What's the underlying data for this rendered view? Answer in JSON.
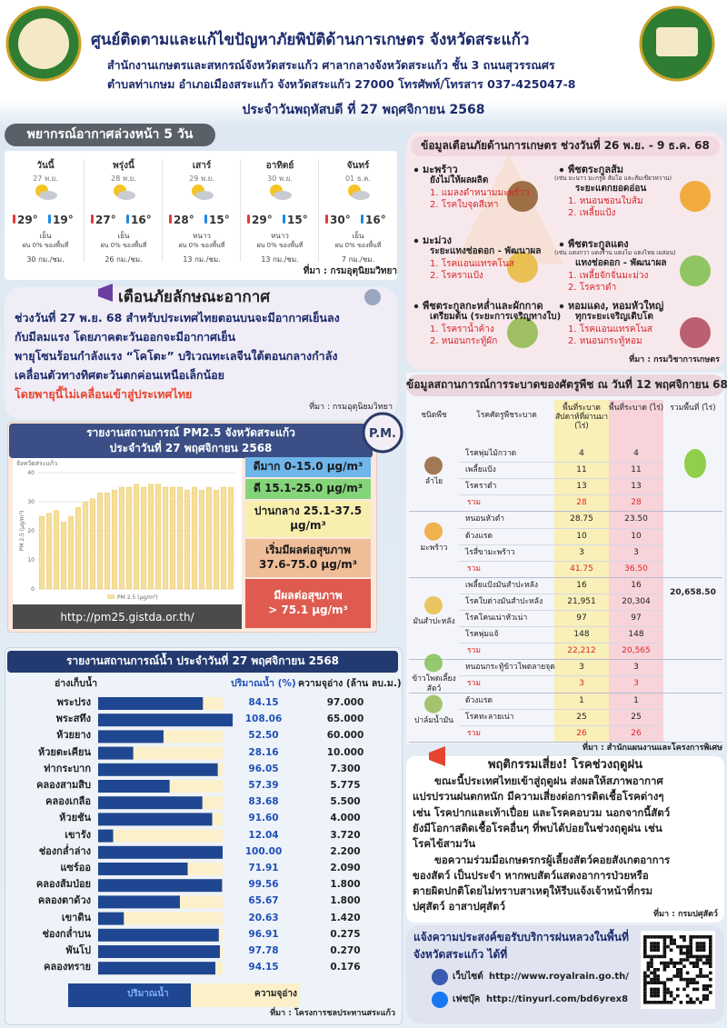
{
  "header": {
    "title": "ศูนย์ติดตามและแก้ไขปัญหาภัยพิบัติด้านการเกษตร จังหวัดสระแก้ว",
    "lines": [
      "สำนักงานเกษตรและสหกรณ์จังหวัดสระแก้ว ศาลากลางจังหวัดสระแก้ว ชั้น 3 ถนนสุวรรณศร",
      "ตำบลท่าเกษม อำเภอเมืองสระแก้ว จังหวัดสระแก้ว 27000 โทรศัพท์/โทรสาร 037-425047-8"
    ],
    "date": "ประจำวันพฤหัสบดี ที่ 27 พฤศจิกายน 2568"
  },
  "weather": {
    "title": "พยากรณ์อากาศล่วงหน้า 5 วัน",
    "days": [
      {
        "day": "วันนี้",
        "date": "27 พ.ย.",
        "max": "29°",
        "min": "19°",
        "condition": "เย็น",
        "rain": "ฝน 0% ของพื้นที่",
        "wind": "30 กม./ชม."
      },
      {
        "day": "พรุ่งนี้",
        "date": "28 พ.ย.",
        "max": "27°",
        "min": "16°",
        "condition": "เย็น",
        "rain": "ฝน 0% ของพื้นที่",
        "wind": "26 กม./ชม."
      },
      {
        "day": "เสาร์",
        "date": "29 พ.ย.",
        "max": "28°",
        "min": "15°",
        "condition": "หนาว",
        "rain": "ฝน 0% ของพื้นที่",
        "wind": "13 กม./ชม."
      },
      {
        "day": "อาทิตย์",
        "date": "30 พ.ย.",
        "max": "29°",
        "min": "15°",
        "condition": "หนาว",
        "rain": "ฝน 0% ของพื้นที่",
        "wind": "13 กม./ชม."
      },
      {
        "day": "จันทร์",
        "date": "01 ธ.ค.",
        "max": "30°",
        "min": "16°",
        "condition": "เย็น",
        "rain": "ฝน 0% ของพื้นที่",
        "wind": "7 กม./ชม."
      }
    ],
    "source": "ที่มา : กรมอุตุนิยมวิทยา"
  },
  "warning": {
    "title": "เตือนภัยลักษณะอากาศ",
    "lines": [
      "ช่วงวันที่ 27 พ.ย. 68 สำหรับประเทศไทยตอนบนจะมีอากาศเย็นลง",
      "กับมีลมแรง โดยภาคตะวันออกจะมีอากาศเย็น",
      "พายุโซนร้อนกำลังแรง “โคโตะ” บริเวณทะเลจีนใต้ตอนกลางกำลัง",
      "เคลื่อนตัวทางทิศตะวันตกค่อนเหนือเล็กน้อย"
    ],
    "highlight": "โดยพายุนี้ไม่เคลื่อนเข้าสู่ประเทศไทย",
    "source": "ที่มา : กรมอุตุนิยมวิทยา"
  },
  "pm25": {
    "title": [
      "รายงานสถานการณ์ PM2.5 จังหวัดสระแก้ว",
      "ประจำวันที่ 27 พฤศจิกายน 2568"
    ],
    "badge": "P.M.",
    "chart": {
      "type": "bar",
      "title": "จังหวัดสระแก้ว",
      "y_label": "PM 2.5 (µg/m³)",
      "legend": "PM 2.5 (µg/m³)",
      "color": "#f6df9a",
      "ylim": [
        0,
        40
      ],
      "yticks": [
        0,
        10,
        20,
        30,
        40
      ],
      "values": [
        25,
        26,
        27,
        23,
        25,
        28,
        30,
        31,
        33,
        33,
        34,
        35,
        35,
        36,
        35,
        36,
        36,
        35,
        35,
        35,
        34,
        35,
        34,
        35,
        34,
        35,
        35
      ]
    },
    "levels": [
      {
        "lines": [
          "ดีมาก 0-15.0 µg/m³"
        ],
        "color": "#6fb6ea"
      },
      {
        "lines": [
          "ดี 15.1-25.0 µg/m³"
        ],
        "color": "#84d57a"
      },
      {
        "lines": [
          "ปานกลาง 25.1-37.5",
          "µg/m³"
        ],
        "color": "#f7efae"
      },
      {
        "lines": [
          "เริ่มมีผลต่อสุขภาพ",
          "37.6-75.0 µg/m³"
        ],
        "color": "#efbd98"
      },
      {
        "lines": [
          "มีผลต่อสุขภาพ",
          "> 75.1 µg/m³"
        ],
        "color": "#df5b50"
      }
    ],
    "url": "http://pm25.gistda.or.th/"
  },
  "water": {
    "title": "รายงานสถานการณ์น้ำ ประจำวันที่ 27 พฤศจิกายน 2568",
    "headers": [
      "อ่างเก็บน้ำ",
      "ปริมาณน้ำ (%)",
      "ความจุอ่าง (ล้าน ลบ.ม.)"
    ],
    "xlim": [
      0,
      100
    ],
    "names": [
      "พระปรง",
      "พระสทึง",
      "ห้วยยาง",
      "ห้วยตะเคียน",
      "ท่ากระบาก",
      "คลองสามสิบ",
      "คลองเกลือ",
      "ห้วยชัน",
      "เขารัง",
      "ช่องกล่ำล่าง",
      "แซร์ออ",
      "คลองส้มป่อย",
      "คลองตาด้วง",
      "เขาดิน",
      "ช่องกล่ำบน",
      "พันโป",
      "คลองทราย"
    ],
    "values": [
      84.15,
      108.06,
      52.5,
      28.16,
      96.05,
      57.39,
      83.68,
      91.6,
      12.04,
      100,
      71.91,
      99.56,
      65.67,
      20.63,
      96.91,
      97.78,
      94.15
    ],
    "value_labels": [
      "84.15",
      "108.06",
      "52.50",
      "28.16",
      "96.05",
      "57.39",
      "83.68",
      "91.60",
      "12.04",
      "100.00",
      "71.91",
      "99.56",
      "65.67",
      "20.63",
      "96.91",
      "97.78",
      "94.15"
    ],
    "capacity": [
      "97.000",
      "65.000",
      "60.000",
      "10.000",
      "7.300",
      "5.775",
      "5.500",
      "4.000",
      "3.720",
      "2.200",
      "2.090",
      "1.800",
      "1.800",
      "1.420",
      "0.275",
      "0.270",
      "0.176"
    ],
    "legend": [
      "ปริมาณน้ำ",
      "ความจุอ่าง"
    ],
    "colors": [
      "#1f4690",
      "#fbf0c9"
    ],
    "source": "ที่มา : โครงการชลประทานสระแก้ว"
  },
  "agri": {
    "title": "ข้อมูลเตือนภัยด้านการเกษตร ช่วงวันที่ 26 พ.ย. - 9 ธ.ค. 68",
    "items": [
      {
        "crop": "มะพร้าว",
        "stage": "ยังไม่ให้ผลผลิต",
        "pests": [
          "1. แมลงดำหนามมะพร้าว",
          "2. โรคใบจุดสีเทา"
        ]
      },
      {
        "crop": "พืชตระกูลส้ม",
        "note": "(เช่น มะนาว มะกรูด ส้มโอ และส้มเขียวหวาน)",
        "stage": "ระยะแตกยอดอ่อน",
        "pests": [
          "1. หนอนชอนใบส้ม",
          "2. เพลี้ยแป้ง"
        ]
      },
      {
        "crop": "มะม่วง",
        "stage": "ระยะแทงช่อดอก - พัฒนาผล",
        "pests": [
          "1. โรคแอนแทรคโนส",
          "2. โรคราแป้ง"
        ]
      },
      {
        "crop": "พืชตระกูลแตง",
        "note": "(เช่น แตงกวา แตงร้าน แตงโม แตงไทย เมล่อน)",
        "stage": "แทงช่อดอก - พัฒนาผล",
        "pests": [
          "1. เพลี้ยจักจั่นมะม่วง",
          "2. โรคราดำ"
        ]
      },
      {
        "crop": "พืชตระกูลกะหล่ำและผักกาด",
        "stage": "เตรียมต้น (ระยะการเจริญทางใบ)",
        "pests": [
          "1. โรคราน้ำค้าง",
          "2. หนอนกระทู้ผัก"
        ]
      },
      {
        "crop": "หอมแดง, หอมหัวใหญ่",
        "stage": "ทุกระยะเจริญเติบโต",
        "pests": [
          "1. โรคแอนแทรคโนส",
          "2. หนอนกระทู้หอม"
        ]
      }
    ],
    "source": "ที่มา : กรมวิชาการเกษตร"
  },
  "pest": {
    "title": "ข้อมูลสถานการณ์การระบาดของศัตรูพืช ณ วันที่ 12 พฤศจิกายน 68",
    "headers": [
      "ชนิดพืช",
      "โรคศัตรูพืชระบาด",
      "พื้นที่ระบาด สัปดาห์ที่ผ่านมา (ไร่)",
      "พื้นที่ระบาด (ไร่)",
      "รวมพื้นที่ (ไร่)"
    ],
    "groups": [
      {
        "crop": "ลำไย",
        "rows": [
          [
            "โรคพุ่มไม้กวาด",
            "4",
            "4"
          ],
          [
            "เพลี้ยแป้ง",
            "11",
            "11"
          ],
          [
            "โรคราดำ",
            "13",
            "13"
          ]
        ],
        "total": [
          "รวม",
          "28",
          "28"
        ]
      },
      {
        "crop": "มะพร้าว",
        "rows": [
          [
            "หนอนหัวดำ",
            "28.75",
            "23.50"
          ],
          [
            "ด้วงแรด",
            "10",
            "10"
          ],
          [
            "ไรสี่ขามะพร้าว",
            "3",
            "3"
          ]
        ],
        "total": [
          "รวม",
          "41.75",
          "36.50"
        ]
      },
      {
        "crop": "มันสำปะหลัง",
        "rows": [
          [
            "เพลี้ยแป้งมันสำปะหลัง",
            "16",
            "16"
          ],
          [
            "โรคใบด่างมันสำปะหลัง",
            "21,951",
            "20,304"
          ],
          [
            "โรคโคนเน่าหัวเน่า",
            "97",
            "97"
          ],
          [
            "โรคพุ่มแจ้",
            "148",
            "148"
          ]
        ],
        "total": [
          "รวม",
          "22,212",
          "20,565"
        ]
      },
      {
        "crop": "ข้าวโพดเลี้ยงสัตว์",
        "rows": [
          [
            "หนอนกระทู้ข้าวโพดลายจุด",
            "3",
            "3"
          ]
        ],
        "total": [
          "รวม",
          "3",
          "3"
        ]
      },
      {
        "crop": "ปาล์มน้ำมัน",
        "rows": [
          [
            "ด้วงแรด",
            "1",
            "1"
          ],
          [
            "โรคทะลายเน่า",
            "25",
            "25"
          ]
        ],
        "total": [
          "รวม",
          "26",
          "26"
        ]
      }
    ],
    "grand_total": "20,658.50",
    "source": "ที่มา : สำนักแผนงานและโครงการพิเศษ"
  },
  "livestock": {
    "title": "พฤติกรรมเสี่ยง! โรคช่วงฤดูฝน",
    "lines": [
      "ขณะนี้ประเทศไทยเข้าสู่ฤดูฝน ส่งผลให้สภาพอากาศ",
      "แปรปรวนฝนตกหนัก มีความเสี่ยงต่อการติดเชื้อโรคต่างๆ",
      "เช่น โรคปากและเท้าเปื่อย และโรคคอบวม นอกจากนี้สัตว์",
      "ยังมีโอกาสติดเชื้อโรคอื่นๆ ที่พบได้บ่อยในช่วงฤดูฝน เช่น",
      "โรคไข้สามวัน",
      "ขอความร่วมมือเกษตรกรผู้เลี้ยงสัตว์คอยสังเกตอาการ",
      "ของสัตว์ เป็นประจำ หากพบสัตว์แสดงอาการป่วยหรือ",
      "ตายผิดปกติโดยไม่ทราบสาเหตุให้รีบแจ้งเจ้าหน้าที่กรม",
      "ปศุสัตว์ อาสาปศุสัตว์"
    ],
    "source": "ที่มา : กรมปศุสัตว์"
  },
  "rain": {
    "lines": [
      "แจ้งความประสงค์ขอรับบริการฝนหลวงในพื้นที่",
      "จังหวัดสระแก้ว ได้ที่"
    ],
    "website": {
      "label": "เว็บไซต์",
      "url": "http://www.royalrain.go.th/"
    },
    "facebook": {
      "label": "เฟซบุ๊ค",
      "url": "http://tinyurl.com/bd6yrex8"
    }
  }
}
